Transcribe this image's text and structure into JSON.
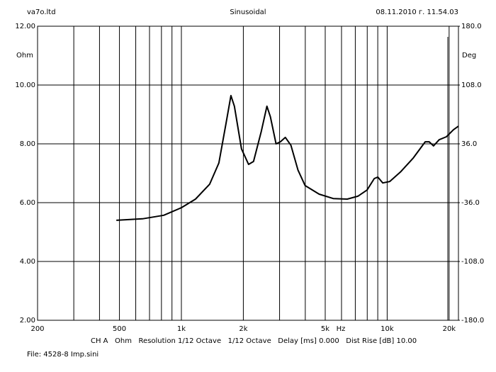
{
  "chart_data": {
    "type": "line",
    "title": "Sinusoidal",
    "left_header": "va7o.ltd",
    "right_header": "08.11.2010 г. 11.54.03",
    "ylabel": "Ohm",
    "y2label": "Deg",
    "xlabel": "Hz",
    "footer": "CH A   Ohm   Resolution 1/12 Octave   1/12 Octave   Delay [ms] 0.000   Dist Rise [dB] 10.00",
    "file": "File: 4528-8 Imp.sini",
    "xlog": true,
    "xlim": [
      200,
      22200
    ],
    "ylim": [
      2,
      12
    ],
    "y2lim": [
      -180,
      180
    ],
    "xticks": [
      200,
      500,
      {
        "value": 1000,
        "label": "1k"
      },
      {
        "value": 2000,
        "label": "2k"
      },
      {
        "value": 5000,
        "label": "5k"
      },
      {
        "value": 10000,
        "label": "10k"
      },
      {
        "value": 20000,
        "label": "20k"
      }
    ],
    "xgrid_minor": [
      300,
      400,
      600,
      700,
      800,
      900,
      3000,
      4000,
      6000,
      7000,
      8000,
      9000
    ],
    "yticks": [
      {
        "value": 12,
        "label": "12.00"
      },
      {
        "value": 10,
        "label": "10.00"
      },
      {
        "value": 8,
        "label": "8.00"
      },
      {
        "value": 6,
        "label": "6.00"
      },
      {
        "value": 4,
        "label": "4.00"
      },
      {
        "value": 2,
        "label": "2.00"
      }
    ],
    "y2ticks": [
      {
        "value": 180,
        "label": "180.0"
      },
      {
        "value": 108,
        "label": "108.0"
      },
      {
        "value": 36,
        "label": "36.0"
      },
      {
        "value": -36,
        "label": "-36.0"
      },
      {
        "value": -108,
        "label": "-108.0"
      },
      {
        "value": -180,
        "label": "-180.0"
      }
    ],
    "grid": true,
    "x": [
      483,
      647,
      821,
      1000,
      1171,
      1372,
      1521,
      1646,
      1740,
      1810,
      1959,
      2121,
      2242,
      2446,
      2603,
      2708,
      2885,
      3027,
      3199,
      3408,
      3686,
      3991,
      4672,
      5467,
      6399,
      7205,
      7982,
      8655,
      9005,
      9520,
      10300,
      11600,
      13400,
      15300,
      16000,
      16800,
      17900,
      19400,
      21000,
      22200
    ],
    "series": [
      {
        "name": "CH A",
        "color": "#000000",
        "values": [
          5.4,
          5.45,
          5.57,
          5.83,
          6.12,
          6.63,
          7.35,
          8.67,
          9.64,
          9.28,
          7.83,
          7.3,
          7.4,
          8.43,
          9.28,
          8.92,
          8.0,
          8.07,
          8.22,
          7.95,
          7.11,
          6.58,
          6.29,
          6.14,
          6.12,
          6.22,
          6.43,
          6.82,
          6.87,
          6.67,
          6.72,
          7.04,
          7.52,
          8.07,
          8.07,
          7.93,
          8.14,
          8.24,
          8.48,
          8.6
        ]
      }
    ]
  }
}
